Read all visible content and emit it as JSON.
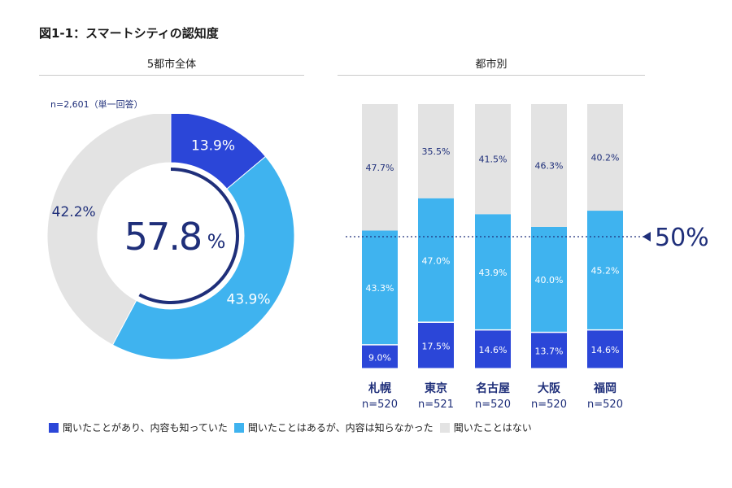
{
  "figure_title": "図1-1：スマートシティの認知度",
  "colors": {
    "dark": "#2b46d8",
    "light": "#3fb3ef",
    "gray": "#e3e3e3",
    "navy": "#1f2f7a",
    "ring": "#1f2f7a"
  },
  "chart_data": [
    {
      "type": "pie",
      "title": "5都市全体",
      "sample_note": "n=2,601（単一回答）",
      "center_value": "57.8",
      "center_unit": "%",
      "categories": [
        "聞いたことがあり、内容も知っていた",
        "聞いたことはあるが、内容は知らなかった",
        "聞いたことはない"
      ],
      "values": [
        13.9,
        43.9,
        42.2
      ],
      "labels": [
        "13.9%",
        "43.9%",
        "42.2%"
      ]
    },
    {
      "type": "bar",
      "title": "都市別",
      "stacked": true,
      "categories": [
        "札幌",
        "東京",
        "名古屋",
        "大阪",
        "福岡"
      ],
      "sample_sizes": [
        "n=520",
        "n=521",
        "n=520",
        "n=520",
        "n=520"
      ],
      "series": [
        {
          "name": "聞いたことがあり、内容も知っていた",
          "values": [
            9.0,
            17.5,
            14.6,
            13.7,
            14.6
          ],
          "labels": [
            "9.0%",
            "17.5%",
            "14.6%",
            "13.7%",
            "14.6%"
          ]
        },
        {
          "name": "聞いたことはあるが、内容は知らなかった",
          "values": [
            43.3,
            47.0,
            43.9,
            40.0,
            45.2
          ],
          "labels": [
            "43.3%",
            "47.0%",
            "43.9%",
            "40.0%",
            "45.2%"
          ]
        },
        {
          "name": "聞いたことはない",
          "values": [
            47.7,
            35.5,
            41.5,
            46.3,
            40.2
          ],
          "labels": [
            "47.7%",
            "35.5%",
            "41.5%",
            "46.3%",
            "40.2%"
          ]
        }
      ],
      "ylim": [
        0,
        100
      ],
      "reference_line": {
        "value": 50,
        "label": "50%"
      }
    }
  ],
  "legend": [
    {
      "label": "聞いたことがあり、内容も知っていた",
      "color": "#2b46d8"
    },
    {
      "label": "聞いたことはあるが、内容は知らなかった",
      "color": "#3fb3ef"
    },
    {
      "label": "聞いたことはない",
      "color": "#e3e3e3"
    }
  ]
}
